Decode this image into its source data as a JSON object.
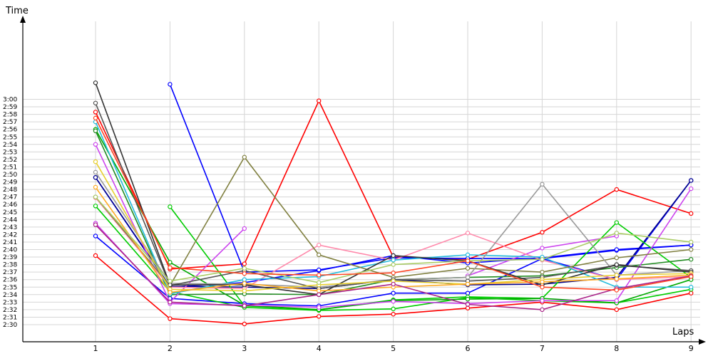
{
  "chart_data": {
    "type": "line",
    "ylabel": "Time",
    "xlabel": "Laps",
    "x": [
      1,
      2,
      3,
      4,
      5,
      6,
      7,
      8,
      9
    ],
    "y_tick_labels": [
      "2:30",
      "2:31",
      "2:32",
      "2:33",
      "2:34",
      "2:35",
      "2:36",
      "2:37",
      "2:38",
      "2:39",
      "2:40",
      "2:41",
      "2:42",
      "2:43",
      "2:44",
      "2:45",
      "2:46",
      "2:47",
      "2:48",
      "2:49",
      "2:50",
      "2:51",
      "2:52",
      "2:53",
      "2:54",
      "2:55",
      "2:56",
      "2:57",
      "2:58",
      "2:59",
      "3:00"
    ],
    "ylim_seconds": [
      148,
      183
    ],
    "grid": true,
    "series": [
      {
        "color": "#ff0000",
        "values": [
          159.2,
          150.8,
          150.1,
          151.1,
          151.4,
          152.2,
          153.0,
          152.0,
          154.2
        ]
      },
      {
        "color": "#ff0000",
        "values": [
          178.3,
          157.4,
          158.1,
          179.8,
          159.0,
          158.7,
          162.3,
          168.0,
          164.8
        ]
      },
      {
        "color": "#0000ff",
        "values": [
          161.8,
          153.5,
          152.8,
          152.5,
          154.2,
          154.2,
          158.8,
          159.9,
          160.6
        ]
      },
      {
        "color": "#0000ff",
        "values": [
          169.6,
          155.0,
          155.6,
          157.2,
          159.2,
          158.2,
          158.9,
          160.0,
          160.6
        ]
      },
      {
        "color": "#0000ff",
        "values": [
          null,
          182.0,
          157.0,
          157.3,
          158.9,
          158.8,
          158.8,
          156.0,
          169.2
        ]
      },
      {
        "color": "#00008b",
        "values": [
          169.6,
          155.1,
          155.0,
          154.8,
          156.0,
          155.3,
          155.4,
          156.3,
          169.2
        ]
      },
      {
        "color": "#00cc00",
        "values": [
          165.8,
          154.4,
          152.3,
          151.9,
          152.1,
          153.6,
          153.2,
          152.9,
          154.7
        ]
      },
      {
        "color": "#00cc00",
        "values": [
          null,
          165.7,
          152.5,
          152.0,
          153.3,
          153.7,
          153.5,
          163.6,
          156.3
        ]
      },
      {
        "color": "#00aa00",
        "values": [
          176.0,
          158.3,
          152.6,
          152.0,
          153.2,
          153.4,
          153.5,
          152.9,
          156.0
        ]
      },
      {
        "color": "#228b22",
        "values": [
          175.8,
          154.0,
          154.1,
          154.0,
          156.0,
          156.3,
          156.5,
          157.6,
          158.7
        ]
      },
      {
        "color": "#cc44ee",
        "values": [
          174.0,
          153.0,
          162.8,
          null,
          null,
          null,
          null,
          null,
          null
        ]
      },
      {
        "color": "#cc44ee",
        "values": [
          163.5,
          152.8,
          152.6,
          152.3,
          153.1,
          152.8,
          153.2,
          153.2,
          168.1
        ]
      },
      {
        "color": "#cc44ee",
        "values": [
          null,
          null,
          null,
          null,
          null,
          156.5,
          160.2,
          161.8,
          null
        ]
      },
      {
        "color": "#ff88aa",
        "values": [
          166.9,
          155.0,
          154.8,
          160.6,
          158.6,
          162.2,
          158.6,
          156.0,
          156.4
        ]
      },
      {
        "color": "#22bbdd",
        "values": [
          177.0,
          154.1,
          156.0,
          156.4,
          158.6,
          159.3,
          159.0,
          155.0,
          155.0
        ]
      },
      {
        "color": "#808040",
        "values": [
          167.0,
          155.2,
          172.3,
          159.3,
          156.3,
          157.5,
          157.0,
          158.9,
          160.0
        ]
      },
      {
        "color": "#999999",
        "values": [
          170.3,
          155.5,
          155.4,
          155.0,
          156.0,
          156.3,
          168.7,
          156.6,
          157.2
        ]
      },
      {
        "color": "#555555",
        "values": [
          179.5,
          155.2,
          157.2,
          154.8,
          156.0,
          155.8,
          156.3,
          157.9,
          157.2
        ]
      },
      {
        "color": "#333333",
        "values": [
          182.2,
          155.3,
          155.3,
          154.0,
          159.2,
          158.5,
          155.3,
          158.0,
          157.0
        ]
      },
      {
        "color": "#e8d030",
        "values": [
          171.7,
          154.7,
          154.5,
          155.3,
          155.8,
          155.4,
          156.0,
          156.6,
          156.8
        ]
      },
      {
        "color": "#ffaa22",
        "values": [
          168.3,
          154.3,
          155.5,
          154.5,
          155.0,
          155.4,
          155.7,
          156.1,
          156.6
        ]
      },
      {
        "color": "#aacc66",
        "values": [
          167.0,
          155.8,
          157.5,
          155.6,
          158.0,
          158.5,
          158.7,
          162.2,
          161.0
        ]
      },
      {
        "color": "#aa2288",
        "values": [
          163.3,
          153.0,
          152.5,
          154.0,
          155.4,
          152.7,
          152.0,
          154.8,
          156.5
        ]
      },
      {
        "color": "#ff4422",
        "values": [
          177.5,
          157.6,
          156.8,
          156.6,
          156.9,
          158.5,
          155.0,
          154.6,
          156.4
        ]
      }
    ]
  }
}
